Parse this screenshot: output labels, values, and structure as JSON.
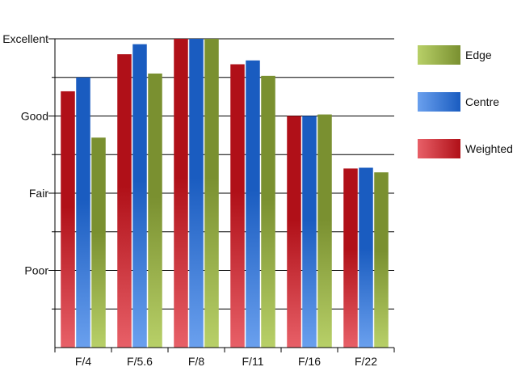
{
  "chart_data": {
    "type": "bar",
    "title": "",
    "xlabel": "",
    "ylabel": "",
    "categories": [
      "F/4",
      "F/5.6",
      "F/8",
      "F/11",
      "F/16",
      "F/22"
    ],
    "y_ticks": [
      {
        "value": 1,
        "label": "Poor"
      },
      {
        "value": 2,
        "label": "Fair"
      },
      {
        "value": 3,
        "label": "Good"
      },
      {
        "value": 4,
        "label": "Excellent"
      }
    ],
    "ylim": [
      0,
      4
    ],
    "grid": true,
    "legend_position": "right",
    "series": [
      {
        "name": "Weighted",
        "values": [
          3.32,
          3.8,
          4.0,
          3.67,
          3.0,
          2.32
        ],
        "color_dark": "#b01018",
        "color_light": "#e86068"
      },
      {
        "name": "Centre",
        "values": [
          3.5,
          3.93,
          4.0,
          3.72,
          3.0,
          2.33
        ],
        "color_dark": "#1a5cc0",
        "color_light": "#6aa0ee"
      },
      {
        "name": "Edge",
        "values": [
          2.72,
          3.55,
          4.0,
          3.52,
          3.02,
          2.27
        ],
        "color_dark": "#7a9030",
        "color_light": "#b8d068"
      }
    ],
    "legend_order": [
      "Edge",
      "Centre",
      "Weighted"
    ]
  }
}
